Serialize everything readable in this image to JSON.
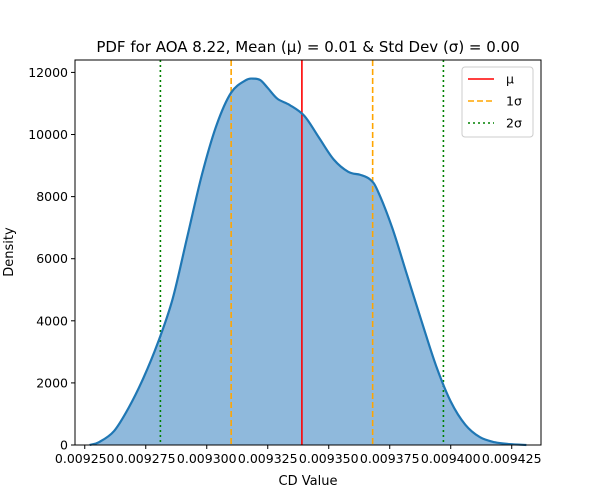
{
  "chart_data": {
    "type": "area",
    "title": "PDF for AOA 8.22, Mean (μ) = 0.01 & Std Dev (σ) = 0.00",
    "xlabel": "CD Value",
    "ylabel": "Density",
    "xlim": [
      0.009246,
      0.009437
    ],
    "ylim": [
      0,
      12400
    ],
    "grid": false,
    "legend_position": "top-right",
    "x_ticks": [
      {
        "value": 0.00925,
        "label": "0.009250"
      },
      {
        "value": 0.009275,
        "label": "0.009275"
      },
      {
        "value": 0.0093,
        "label": "0.009300"
      },
      {
        "value": 0.009325,
        "label": "0.009325"
      },
      {
        "value": 0.00935,
        "label": "0.009350"
      },
      {
        "value": 0.009375,
        "label": "0.009375"
      },
      {
        "value": 0.0094,
        "label": "0.009400"
      },
      {
        "value": 0.009425,
        "label": "0.009425"
      }
    ],
    "y_ticks": [
      {
        "value": 0,
        "label": "0"
      },
      {
        "value": 2000,
        "label": "2000"
      },
      {
        "value": 4000,
        "label": "4000"
      },
      {
        "value": 6000,
        "label": "6000"
      },
      {
        "value": 8000,
        "label": "8000"
      },
      {
        "value": 10000,
        "label": "10000"
      },
      {
        "value": 12000,
        "label": "12000"
      }
    ],
    "density_curve": {
      "color": "#1f77b4",
      "fill_color": "#8fb9dc",
      "x": [
        0.009252,
        0.009256,
        0.009262,
        0.009268,
        0.009274,
        0.00928,
        0.009286,
        0.009292,
        0.009298,
        0.009304,
        0.00931,
        0.009316,
        0.009319,
        0.009322,
        0.009325,
        0.009329,
        0.009334,
        0.00934,
        0.009346,
        0.009352,
        0.009358,
        0.009363,
        0.009367,
        0.00937,
        0.009376,
        0.009382,
        0.009388,
        0.009394,
        0.0094,
        0.009406,
        0.009412,
        0.009418,
        0.009424,
        0.009431
      ],
      "y": [
        0,
        100,
        450,
        1200,
        2150,
        3300,
        4700,
        6700,
        8700,
        10300,
        11350,
        11750,
        11800,
        11750,
        11500,
        11150,
        10950,
        10600,
        9900,
        9200,
        8800,
        8700,
        8550,
        8200,
        7000,
        5500,
        4000,
        2550,
        1400,
        650,
        250,
        90,
        30,
        0
      ]
    },
    "vlines": [
      {
        "name": "μ",
        "x": 0.009339,
        "color": "#ff0000",
        "style": "solid"
      },
      {
        "name": "1σ",
        "x": 0.00931,
        "color": "#ffa500",
        "style": "dashed"
      },
      {
        "name": "1σ",
        "x": 0.009368,
        "color": "#ffa500",
        "style": "dashed"
      },
      {
        "name": "2σ",
        "x": 0.009281,
        "color": "#008000",
        "style": "dotted"
      },
      {
        "name": "2σ",
        "x": 0.009397,
        "color": "#008000",
        "style": "dotted"
      }
    ],
    "legend": [
      {
        "label": "μ",
        "color": "#ff0000",
        "style": "solid"
      },
      {
        "label": "1σ",
        "color": "#ffa500",
        "style": "dashed"
      },
      {
        "label": "2σ",
        "color": "#008000",
        "style": "dotted"
      }
    ]
  }
}
